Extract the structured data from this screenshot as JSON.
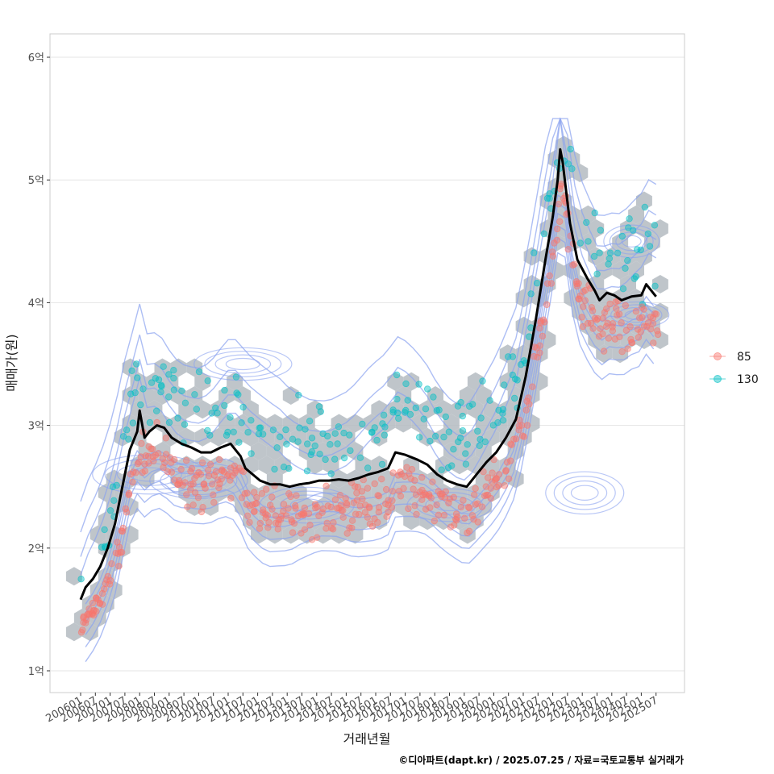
{
  "chart_data": {
    "type": "scatter",
    "xlabel": "거래년월",
    "ylabel": "매매가(원)",
    "caption": "©디아파트(dapt.kr) / 2025.07.25 / 자료=국토교통부 실거래가",
    "xlim": [
      "2006-01",
      "2025-07"
    ],
    "ylim": [
      0.85,
      6.2
    ],
    "x_ticks": [
      "200601",
      "200607",
      "200701",
      "200707",
      "200801",
      "200807",
      "200901",
      "200907",
      "201001",
      "201007",
      "201101",
      "201107",
      "201201",
      "201207",
      "201301",
      "201307",
      "201401",
      "201407",
      "201501",
      "201507",
      "201601",
      "201607",
      "201701",
      "201707",
      "201801",
      "201807",
      "201901",
      "201907",
      "202001",
      "202007",
      "202101",
      "202107",
      "202201",
      "202207",
      "202301",
      "202307",
      "202401",
      "202407",
      "202501",
      "202507"
    ],
    "y_ticks": [
      {
        "value": 1,
        "label": "1억"
      },
      {
        "value": 2,
        "label": "2억"
      },
      {
        "value": 3,
        "label": "3억"
      },
      {
        "value": 4,
        "label": "4억"
      },
      {
        "value": 5,
        "label": "5억"
      },
      {
        "value": 6,
        "label": "6억"
      }
    ],
    "grid": true,
    "legend_position": "right",
    "legend": [
      {
        "label": "85",
        "color": "#F8766D"
      },
      {
        "label": "130",
        "color": "#00BFC4"
      }
    ],
    "colors": {
      "hexbin": "#b4bbc1",
      "density": "#8aa2f0",
      "trend": "#000000",
      "grid": "#e5e5e5",
      "panel_border": "#cccccc"
    },
    "trend_line": [
      [
        "2006-01",
        1.58
      ],
      [
        "2006-03",
        1.68
      ],
      [
        "2006-06",
        1.75
      ],
      [
        "2006-09",
        1.85
      ],
      [
        "2006-12",
        2.0
      ],
      [
        "2007-03",
        2.2
      ],
      [
        "2007-06",
        2.5
      ],
      [
        "2007-09",
        2.8
      ],
      [
        "2007-12",
        2.95
      ],
      [
        "2008-01",
        3.12
      ],
      [
        "2008-03",
        2.9
      ],
      [
        "2008-05",
        2.95
      ],
      [
        "2008-08",
        3.0
      ],
      [
        "2008-11",
        2.98
      ],
      [
        "2009-02",
        2.9
      ],
      [
        "2009-06",
        2.85
      ],
      [
        "2009-10",
        2.82
      ],
      [
        "2010-02",
        2.78
      ],
      [
        "2010-06",
        2.78
      ],
      [
        "2010-10",
        2.82
      ],
      [
        "2011-02",
        2.85
      ],
      [
        "2011-06",
        2.75
      ],
      [
        "2011-08",
        2.65
      ],
      [
        "2011-11",
        2.6
      ],
      [
        "2012-02",
        2.55
      ],
      [
        "2012-06",
        2.52
      ],
      [
        "2012-10",
        2.52
      ],
      [
        "2013-02",
        2.5
      ],
      [
        "2013-06",
        2.52
      ],
      [
        "2013-10",
        2.53
      ],
      [
        "2014-02",
        2.55
      ],
      [
        "2014-06",
        2.55
      ],
      [
        "2014-10",
        2.56
      ],
      [
        "2015-02",
        2.55
      ],
      [
        "2015-06",
        2.57
      ],
      [
        "2015-10",
        2.6
      ],
      [
        "2016-02",
        2.62
      ],
      [
        "2016-06",
        2.65
      ],
      [
        "2016-09",
        2.78
      ],
      [
        "2017-01",
        2.76
      ],
      [
        "2017-06",
        2.72
      ],
      [
        "2017-10",
        2.68
      ],
      [
        "2018-02",
        2.6
      ],
      [
        "2018-06",
        2.55
      ],
      [
        "2018-10",
        2.52
      ],
      [
        "2019-02",
        2.5
      ],
      [
        "2019-06",
        2.6
      ],
      [
        "2019-10",
        2.7
      ],
      [
        "2020-02",
        2.78
      ],
      [
        "2020-06",
        2.9
      ],
      [
        "2020-10",
        3.05
      ],
      [
        "2021-02",
        3.4
      ],
      [
        "2021-06",
        3.85
      ],
      [
        "2021-10",
        4.35
      ],
      [
        "2022-01",
        4.7
      ],
      [
        "2022-03",
        5.0
      ],
      [
        "2022-04",
        5.25
      ],
      [
        "2022-05",
        5.15
      ],
      [
        "2022-08",
        4.65
      ],
      [
        "2022-11",
        4.35
      ],
      [
        "2023-03",
        4.2
      ],
      [
        "2023-06",
        4.1
      ],
      [
        "2023-08",
        4.02
      ],
      [
        "2023-11",
        4.08
      ],
      [
        "2024-02",
        4.06
      ],
      [
        "2024-05",
        4.02
      ],
      [
        "2024-09",
        4.05
      ],
      [
        "2025-01",
        4.06
      ],
      [
        "2025-03",
        4.15
      ],
      [
        "2025-05",
        4.1
      ],
      [
        "2025-07",
        4.05
      ]
    ]
  }
}
